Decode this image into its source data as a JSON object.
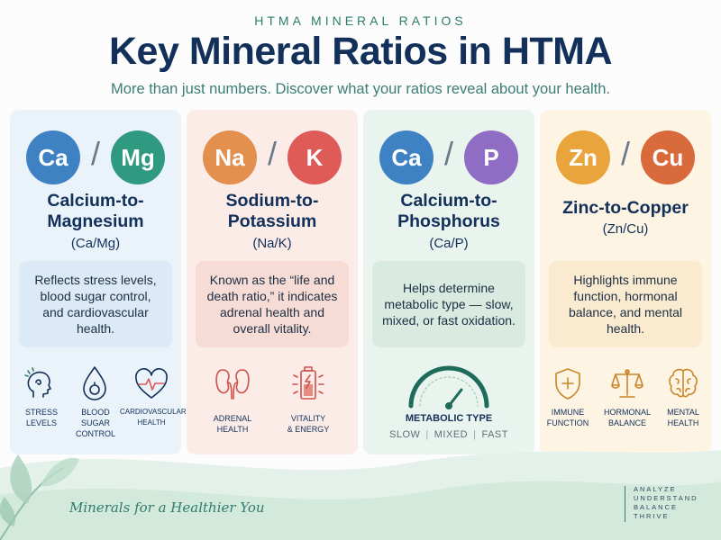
{
  "header": {
    "eyebrow": "HTMA MINERAL RATIOS",
    "title": "Key Mineral Ratios in HTMA",
    "subtitle": "More than just numbers. Discover what your ratios reveal about your health."
  },
  "cards": [
    {
      "left_symbol": "Ca",
      "right_symbol": "Mg",
      "divider": "/",
      "left_color": "#3e82c4",
      "right_color": "#2f9a80",
      "title_line1": "Calcium-to-",
      "title_line2": "Magnesium",
      "abbr": "(Ca/Mg)",
      "description": "Reflects stress levels, blood sugar control, and cardiovascular health.",
      "icons": [
        {
          "name": "stress-icon",
          "line1": "STRESS",
          "line2": "LEVELS",
          "line3": ""
        },
        {
          "name": "blood-drop-icon",
          "line1": "BLOOD",
          "line2": "SUGAR",
          "line3": "CONTROL"
        },
        {
          "name": "heart-pulse-icon",
          "line1": "CARDIOVASCULAR",
          "line2": "HEALTH",
          "line3": ""
        }
      ]
    },
    {
      "left_symbol": "Na",
      "right_symbol": "K",
      "divider": "/",
      "left_color": "#e38f4e",
      "right_color": "#de5b58",
      "title_line1": "Sodium-to-",
      "title_line2": "Potassium",
      "abbr": "(Na/K)",
      "description": "Known as the “life and death ratio,” it indicates adrenal health and overall vitality.",
      "icons": [
        {
          "name": "kidney-icon",
          "line1": "ADRENAL",
          "line2": "HEALTH",
          "line3": ""
        },
        {
          "name": "battery-icon",
          "line1": "VITALITY",
          "line2": "& ENERGY",
          "line3": ""
        }
      ]
    },
    {
      "left_symbol": "Ca",
      "right_symbol": "P",
      "divider": "/",
      "left_color": "#3e82c4",
      "right_color": "#8f6dc4",
      "title_line1": "Calcium-to-",
      "title_line2": "Phosphorus",
      "abbr": "(Ca/P)",
      "description": "Helps determine metabolic type — slow, mixed, or fast oxidation.",
      "gauge": {
        "label": "METABOLIC TYPE",
        "slow": "SLOW",
        "mixed": "MIXED",
        "fast": "FAST",
        "sep": "|"
      }
    },
    {
      "left_symbol": "Zn",
      "right_symbol": "Cu",
      "divider": "/",
      "left_color": "#e9a53b",
      "right_color": "#d96a3b",
      "title_line1": "Zinc-to-Copper",
      "title_line2": "",
      "abbr": "(Zn/Cu)",
      "description": "Highlights immune function, hormonal balance, and mental health.",
      "icons": [
        {
          "name": "shield-icon",
          "line1": "IMMUNE",
          "line2": "FUNCTION",
          "line3": ""
        },
        {
          "name": "scale-icon",
          "line1": "HORMONAL",
          "line2": "BALANCE",
          "line3": ""
        },
        {
          "name": "brain-icon",
          "line1": "MENTAL",
          "line2": "HEALTH",
          "line3": ""
        }
      ]
    }
  ],
  "footer": {
    "tagline": "Minerals for a Healthier You",
    "list": [
      "ANALYZE",
      "UNDERSTAND",
      "BALANCE",
      "THRIVE"
    ]
  }
}
